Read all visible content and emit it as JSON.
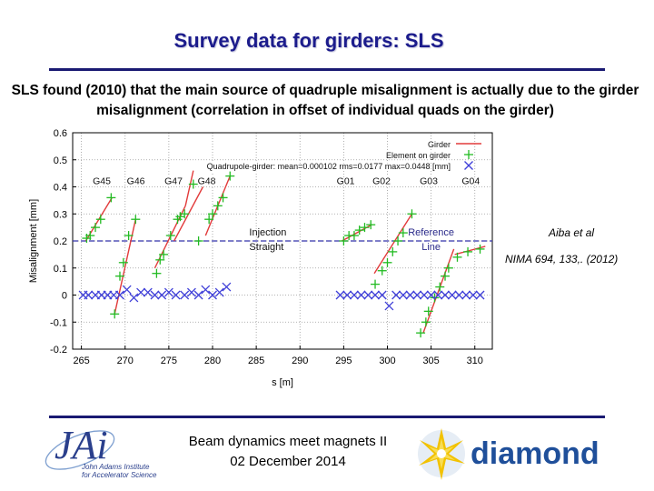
{
  "slide": {
    "title": "Survey data for girders: SLS",
    "body": "SLS found (2010) that the main source of quadruple misalignment is actually due to the girder misalignment (correlation in offset of individual quads on the girder)",
    "citation_authors": "Aiba et al",
    "citation_ref": "NIMA 694, 133,. (2012)",
    "footer_line1": "Beam dynamics meet magnets II",
    "footer_line2": "02 December 2014",
    "jai_logo_line1": "John Adams Institute",
    "jai_logo_line2": "for Accelerator Science",
    "diamond_logo_text": "diamond"
  },
  "chart_data": {
    "type": "scatter",
    "xlabel": "s [m]",
    "ylabel": "Misalignment [mm]",
    "xlim": [
      264,
      312
    ],
    "ylim": [
      -0.2,
      0.6
    ],
    "xticks": [
      265,
      270,
      275,
      280,
      285,
      290,
      295,
      300,
      305,
      310
    ],
    "yticks": [
      -0.2,
      -0.1,
      0,
      0.1,
      0.2,
      0.3,
      0.4,
      0.5,
      0.6
    ],
    "grid": true,
    "legend_position": "top-right",
    "legend": [
      "Girder",
      "Element on girder",
      "Quadrupole-girder: mean=0.000102 rms=0.0177 max=0.0448 [mm]"
    ],
    "colors": {
      "girder": "#e23b3b",
      "element": "#22bb22",
      "quad": "#3f3fd8",
      "reference": "#3333aa"
    },
    "reference_line": {
      "y": 0.2,
      "label": "Reference Line"
    },
    "annotations": [
      {
        "text": "Injection Straight",
        "x": 284.2,
        "y": 0.2
      },
      {
        "text": "G45",
        "x": 266.3,
        "y": 0.41
      },
      {
        "text": "G46",
        "x": 270.2,
        "y": 0.41
      },
      {
        "text": "G47",
        "x": 274.5,
        "y": 0.41
      },
      {
        "text": "G48",
        "x": 278.3,
        "y": 0.41
      },
      {
        "text": "G01",
        "x": 294.2,
        "y": 0.41
      },
      {
        "text": "G02",
        "x": 298.3,
        "y": 0.41
      },
      {
        "text": "G03",
        "x": 303.7,
        "y": 0.41
      },
      {
        "text": "G04",
        "x": 308.5,
        "y": 0.41
      }
    ],
    "girder_lines": [
      {
        "name": "G45",
        "x": [
          265.5,
          268.5
        ],
        "y": [
          0.2,
          0.36
        ]
      },
      {
        "name": "G46",
        "x": [
          268.8,
          271.2
        ],
        "y": [
          -0.07,
          0.28
        ]
      },
      {
        "name": "G47",
        "x": [
          273.4,
          276.9
        ],
        "y": [
          0.1,
          0.33
        ]
      },
      {
        "name": "G47b",
        "x": [
          276.9,
          277.8
        ],
        "y": [
          0.33,
          0.46
        ]
      },
      {
        "name": "G48",
        "x": [
          275.6,
          278.9
        ],
        "y": [
          0.2,
          0.4
        ]
      },
      {
        "name": "G48b",
        "x": [
          279.2,
          282.0
        ],
        "y": [
          0.22,
          0.44
        ]
      },
      {
        "name": "G01",
        "x": [
          294.8,
          298.2
        ],
        "y": [
          0.2,
          0.26
        ]
      },
      {
        "name": "G02",
        "x": [
          298.5,
          302.8
        ],
        "y": [
          0.08,
          0.3
        ]
      },
      {
        "name": "G03",
        "x": [
          304.1,
          307.6
        ],
        "y": [
          -0.14,
          0.17
        ]
      },
      {
        "name": "G04",
        "x": [
          307.7,
          311.2
        ],
        "y": [
          0.15,
          0.18
        ]
      }
    ],
    "element_points": [
      {
        "x": 265.6,
        "y": 0.21
      },
      {
        "x": 266.0,
        "y": 0.22
      },
      {
        "x": 266.6,
        "y": 0.25
      },
      {
        "x": 267.2,
        "y": 0.28
      },
      {
        "x": 268.4,
        "y": 0.36
      },
      {
        "x": 268.8,
        "y": -0.07
      },
      {
        "x": 269.4,
        "y": 0.07
      },
      {
        "x": 269.8,
        "y": 0.12
      },
      {
        "x": 270.4,
        "y": 0.22
      },
      {
        "x": 271.2,
        "y": 0.28
      },
      {
        "x": 273.6,
        "y": 0.08
      },
      {
        "x": 274.0,
        "y": 0.13
      },
      {
        "x": 274.4,
        "y": 0.15
      },
      {
        "x": 275.2,
        "y": 0.22
      },
      {
        "x": 276.0,
        "y": 0.28
      },
      {
        "x": 276.3,
        "y": 0.29
      },
      {
        "x": 276.8,
        "y": 0.3
      },
      {
        "x": 277.8,
        "y": 0.41
      },
      {
        "x": 278.4,
        "y": 0.2
      },
      {
        "x": 279.6,
        "y": 0.28
      },
      {
        "x": 280.0,
        "y": 0.3
      },
      {
        "x": 280.6,
        "y": 0.33
      },
      {
        "x": 281.2,
        "y": 0.36
      },
      {
        "x": 282.0,
        "y": 0.44
      },
      {
        "x": 295.0,
        "y": 0.2
      },
      {
        "x": 295.6,
        "y": 0.22
      },
      {
        "x": 296.2,
        "y": 0.22
      },
      {
        "x": 296.8,
        "y": 0.24
      },
      {
        "x": 297.4,
        "y": 0.25
      },
      {
        "x": 298.1,
        "y": 0.26
      },
      {
        "x": 298.6,
        "y": 0.04
      },
      {
        "x": 299.4,
        "y": 0.09
      },
      {
        "x": 300.0,
        "y": 0.12
      },
      {
        "x": 300.6,
        "y": 0.16
      },
      {
        "x": 301.2,
        "y": 0.2
      },
      {
        "x": 301.8,
        "y": 0.23
      },
      {
        "x": 302.8,
        "y": 0.3
      },
      {
        "x": 303.8,
        "y": -0.14
      },
      {
        "x": 304.4,
        "y": -0.1
      },
      {
        "x": 304.7,
        "y": -0.06
      },
      {
        "x": 305.4,
        "y": -0.01
      },
      {
        "x": 306.0,
        "y": 0.03
      },
      {
        "x": 306.6,
        "y": 0.07
      },
      {
        "x": 307.0,
        "y": 0.1
      },
      {
        "x": 308.0,
        "y": 0.14
      },
      {
        "x": 309.2,
        "y": 0.16
      },
      {
        "x": 310.6,
        "y": 0.17
      }
    ],
    "quad_points": [
      {
        "x": 265.2,
        "y": 0.0
      },
      {
        "x": 265.8,
        "y": 0.0
      },
      {
        "x": 266.6,
        "y": 0.0
      },
      {
        "x": 267.3,
        "y": 0.0
      },
      {
        "x": 268.0,
        "y": 0.0
      },
      {
        "x": 268.7,
        "y": 0.0
      },
      {
        "x": 269.4,
        "y": 0.0
      },
      {
        "x": 270.2,
        "y": 0.02
      },
      {
        "x": 271.0,
        "y": -0.01
      },
      {
        "x": 271.8,
        "y": 0.01
      },
      {
        "x": 272.6,
        "y": 0.01
      },
      {
        "x": 273.4,
        "y": 0.0
      },
      {
        "x": 274.2,
        "y": 0.0
      },
      {
        "x": 275.0,
        "y": 0.01
      },
      {
        "x": 275.8,
        "y": 0.0
      },
      {
        "x": 276.8,
        "y": 0.0
      },
      {
        "x": 277.6,
        "y": 0.01
      },
      {
        "x": 278.4,
        "y": 0.0
      },
      {
        "x": 279.2,
        "y": 0.02
      },
      {
        "x": 280.0,
        "y": 0.0
      },
      {
        "x": 280.8,
        "y": 0.01
      },
      {
        "x": 281.6,
        "y": 0.03
      },
      {
        "x": 294.6,
        "y": 0.0
      },
      {
        "x": 295.4,
        "y": 0.0
      },
      {
        "x": 296.2,
        "y": 0.0
      },
      {
        "x": 297.0,
        "y": 0.0
      },
      {
        "x": 297.8,
        "y": 0.0
      },
      {
        "x": 298.6,
        "y": 0.0
      },
      {
        "x": 299.4,
        "y": 0.0
      },
      {
        "x": 300.2,
        "y": -0.04
      },
      {
        "x": 301.0,
        "y": 0.0
      },
      {
        "x": 301.8,
        "y": 0.0
      },
      {
        "x": 302.6,
        "y": 0.0
      },
      {
        "x": 303.4,
        "y": 0.0
      },
      {
        "x": 304.2,
        "y": 0.0
      },
      {
        "x": 305.0,
        "y": 0.0
      },
      {
        "x": 305.8,
        "y": 0.0
      },
      {
        "x": 306.6,
        "y": 0.0
      },
      {
        "x": 307.4,
        "y": 0.0
      },
      {
        "x": 308.2,
        "y": 0.0
      },
      {
        "x": 309.0,
        "y": 0.0
      },
      {
        "x": 309.8,
        "y": 0.0
      },
      {
        "x": 310.6,
        "y": 0.0
      }
    ]
  }
}
